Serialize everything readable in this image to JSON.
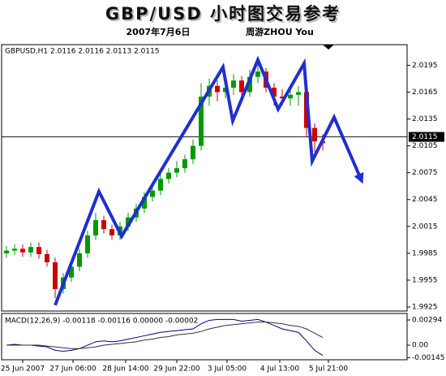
{
  "chart_data": [
    {
      "type": "candlestick",
      "title": "GBP/USD 小时图交易参考",
      "subtitle": "2007年7月6日",
      "author": "周游ZHOU You",
      "header": "GBPUSD,H1  2.0116 2.0116 2.0113 2.0115",
      "xlim": [
        -0.5,
        49.4
      ],
      "xticks": [
        {
          "value": 2,
          "label": "25 Jun 2007"
        },
        {
          "value": 8.2,
          "label": "27 Jun 06:00"
        },
        {
          "value": 14.7,
          "label": "28 Jun 14:00"
        },
        {
          "value": 21,
          "label": "29 Jun 22:00"
        },
        {
          "value": 27.2,
          "label": "3 Jul 05:00"
        },
        {
          "value": 33.7,
          "label": "4 Jul 13:00"
        },
        {
          "value": 39.7,
          "label": "5 Jul 21:00"
        }
      ],
      "ylim": [
        1.99205,
        2.0218
      ],
      "yticks": [
        2.0195,
        2.0165,
        2.0135,
        2.0105,
        2.0075,
        2.0045,
        2.0015,
        1.9985,
        1.9955,
        1.9925
      ],
      "price_line": 2.0115,
      "up_color": "#009900",
      "down_color": "#cc0000",
      "open": [
        1.9985,
        1.9988,
        1.999,
        1.9986,
        1.9992,
        1.9984,
        1.9975,
        1.9945,
        1.9958,
        1.997,
        1.9985,
        2.0005,
        2.0022,
        2.0012,
        2.0005,
        2.0015,
        2.0025,
        2.0035,
        2.0048,
        2.0055,
        2.0068,
        2.0075,
        2.008,
        2.009,
        2.0105,
        2.016,
        2.0172,
        2.0165,
        2.017,
        2.0178,
        2.0165,
        2.0182,
        2.0188,
        2.017,
        2.016,
        2.0158,
        2.0162,
        2.0165,
        2.0125,
        2.011
      ],
      "high": [
        1.9993,
        1.9995,
        1.9995,
        1.9997,
        1.9997,
        1.9989,
        1.998,
        1.9963,
        1.9975,
        1.999,
        2.001,
        2.003,
        2.0027,
        2.0017,
        2.002,
        2.003,
        2.004,
        2.0053,
        2.006,
        2.0073,
        2.008,
        2.0088,
        2.0095,
        2.0112,
        2.0175,
        2.018,
        2.0178,
        2.018,
        2.0185,
        2.0183,
        2.019,
        2.02,
        2.0192,
        2.0175,
        2.0168,
        2.017,
        2.0172,
        2.0168,
        2.013,
        2.0118
      ],
      "low": [
        1.998,
        1.9983,
        1.9981,
        1.9981,
        1.9979,
        1.997,
        1.9935,
        1.994,
        1.9953,
        1.9965,
        1.998,
        2.0,
        2.0007,
        2.0,
        2.0,
        2.001,
        2.002,
        2.003,
        2.0043,
        2.005,
        2.0063,
        2.007,
        2.0075,
        2.0085,
        2.01,
        2.015,
        2.0155,
        2.0158,
        2.0162,
        2.0158,
        2.016,
        2.0175,
        2.0165,
        2.015,
        2.015,
        2.015,
        2.015,
        2.0115,
        2.0098,
        2.01
      ],
      "close": [
        1.9988,
        1.999,
        1.9986,
        1.9992,
        1.9984,
        1.9975,
        1.9945,
        1.9958,
        1.997,
        1.9985,
        2.0005,
        2.0022,
        2.0012,
        2.0005,
        2.0015,
        2.0025,
        2.0035,
        2.0048,
        2.0055,
        2.0068,
        2.0075,
        2.008,
        2.009,
        2.0105,
        2.016,
        2.0172,
        2.0165,
        2.017,
        2.0178,
        2.0165,
        2.0182,
        2.0188,
        2.017,
        2.016,
        2.0158,
        2.0162,
        2.0165,
        2.0125,
        2.011,
        2.0108
      ],
      "annotation": {
        "color": "#1f2fd0",
        "x": [
          6,
          11.4,
          14.2,
          26.7,
          27.9,
          31,
          33.5,
          36.7,
          37.7,
          40.4,
          43.7
        ],
        "values": [
          1.9927,
          2.0054,
          2.0004,
          2.0193,
          2.0133,
          2.0201,
          2.0146,
          2.0197,
          2.0088,
          2.0137,
          2.0068
        ]
      }
    },
    {
      "type": "line",
      "header": "MACD(12,26,9) -0.00118 -0.00116 0.00000 -0.00002",
      "ylim": [
        -0.0017,
        0.0037
      ],
      "yticks": [
        0.00294,
        {
          "value": 0,
          "label": "0.00"
        },
        -0.00145
      ],
      "series": [
        {
          "color": "#000080",
          "values": [
            0.0,
            0.0001,
            0.0,
            0.0,
            -0.0001,
            -0.0002,
            -0.0006,
            -0.0007,
            -0.0006,
            -0.0004,
            0.0,
            0.0004,
            0.0005,
            0.0004,
            0.0005,
            0.0007,
            0.0009,
            0.0011,
            0.0013,
            0.0015,
            0.0016,
            0.0017,
            0.0018,
            0.0019,
            0.0025,
            0.0029,
            0.003,
            0.003,
            0.003,
            0.0028,
            0.0029,
            0.003,
            0.0027,
            0.0023,
            0.0019,
            0.0017,
            0.0015,
            0.0005,
            -0.0006,
            -0.0012
          ]
        },
        {
          "color": "#333333",
          "values": [
            0.0,
            0.0,
            0.0,
            0.0,
            0.0,
            -0.0001,
            -0.0002,
            -0.0003,
            -0.0004,
            -0.0004,
            -0.0003,
            -0.0002,
            0.0,
            0.0001,
            0.0002,
            0.0003,
            0.0004,
            0.0006,
            0.0007,
            0.0009,
            0.001,
            0.0012,
            0.0013,
            0.0014,
            0.0016,
            0.0019,
            0.0021,
            0.0023,
            0.0024,
            0.0025,
            0.0026,
            0.0027,
            0.0027,
            0.0026,
            0.0025,
            0.0023,
            0.0022,
            0.0019,
            0.0014,
            0.0009
          ]
        }
      ]
    }
  ]
}
